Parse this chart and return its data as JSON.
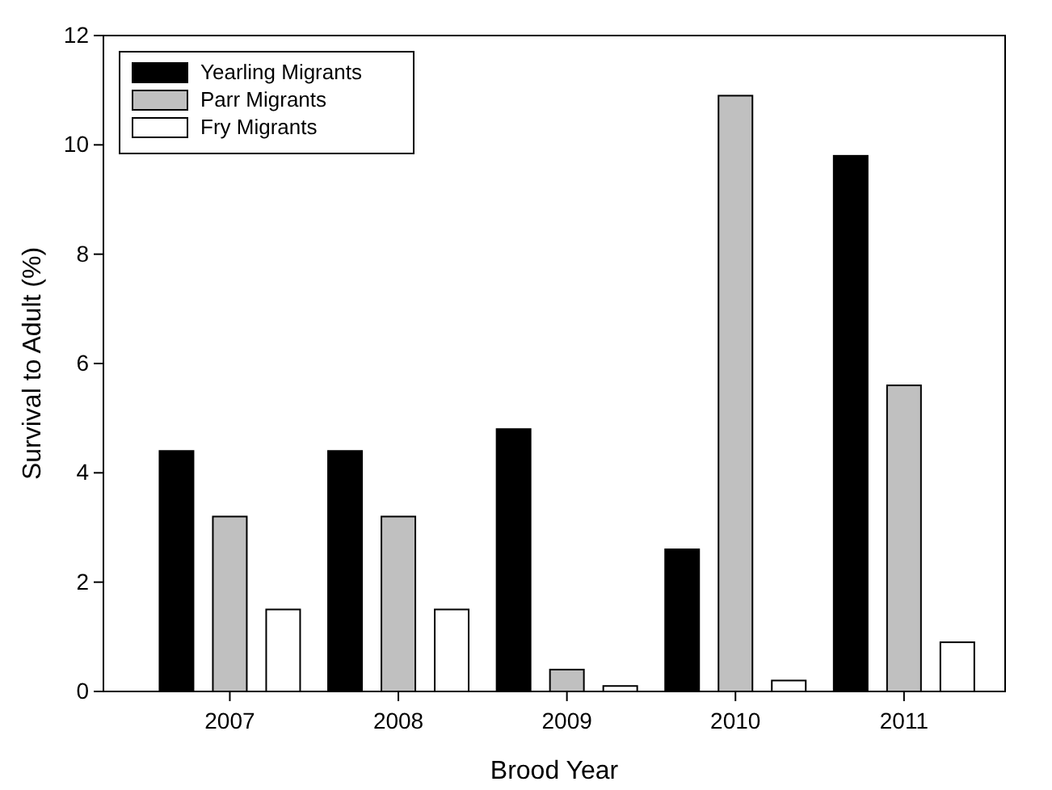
{
  "chart_data": {
    "type": "bar",
    "xlabel": "Brood Year",
    "ylabel": "Survival to Adult (%)",
    "categories": [
      "2007",
      "2008",
      "2009",
      "2010",
      "2011"
    ],
    "series": [
      {
        "name": "Yearling Migrants",
        "color": "#000000",
        "values": [
          4.4,
          4.4,
          4.8,
          2.6,
          9.8
        ]
      },
      {
        "name": "Parr Migrants",
        "color": "#c0c0c0",
        "values": [
          3.2,
          3.2,
          0.4,
          10.9,
          5.6
        ]
      },
      {
        "name": "Fry Migrants",
        "color": "#ffffff",
        "values": [
          1.5,
          1.5,
          0.1,
          0.2,
          0.9
        ]
      }
    ],
    "ylim": [
      0,
      12
    ],
    "yticks": [
      0,
      2,
      4,
      6,
      8,
      10,
      12
    ],
    "grid": false,
    "legend": "top left"
  }
}
